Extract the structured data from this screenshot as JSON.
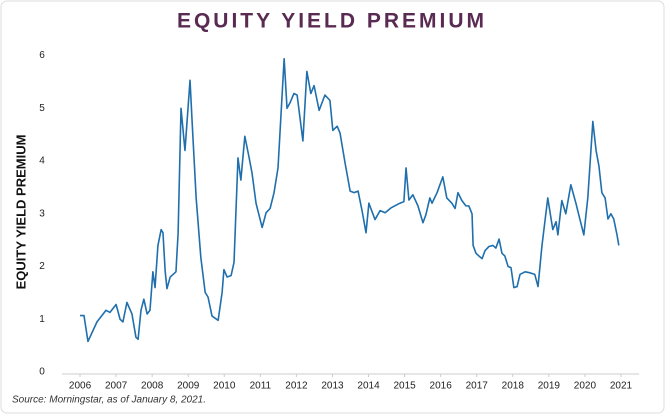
{
  "chart_data": {
    "type": "line",
    "title": "EQUITY YIELD PREMIUM",
    "y_label": "EQUITY YIELD PREMIUM",
    "source": "Source: Morningstar, as of January 8, 2021.",
    "xlim": [
      2005.5,
      2021.5
    ],
    "xticks": [
      2006,
      2007,
      2008,
      2009,
      2010,
      2011,
      2012,
      2013,
      2014,
      2015,
      2016,
      2017,
      2018,
      2019,
      2020,
      2021
    ],
    "ylim": [
      0,
      6.2
    ],
    "yticks": [
      0,
      1,
      2,
      3,
      4,
      5,
      6
    ],
    "grid": false,
    "series": [
      {
        "name": "Equity Yield Premium",
        "color": "#1f6fad",
        "x": [
          2006.0,
          2006.11,
          2006.22,
          2006.47,
          2006.72,
          2006.83,
          2007.0,
          2007.11,
          2007.19,
          2007.3,
          2007.44,
          2007.55,
          2007.61,
          2007.69,
          2007.77,
          2007.86,
          2007.94,
          2008.02,
          2008.08,
          2008.16,
          2008.25,
          2008.3,
          2008.36,
          2008.41,
          2008.5,
          2008.66,
          2008.72,
          2008.8,
          2008.91,
          2009.05,
          2009.11,
          2009.22,
          2009.35,
          2009.47,
          2009.55,
          2009.66,
          2009.83,
          2009.94,
          2009.99,
          2010.08,
          2010.19,
          2010.27,
          2010.38,
          2010.46,
          2010.57,
          2010.69,
          2010.77,
          2010.88,
          2011.05,
          2011.16,
          2011.27,
          2011.38,
          2011.49,
          2011.66,
          2011.74,
          2011.82,
          2011.93,
          2012.02,
          2012.18,
          2012.29,
          2012.4,
          2012.49,
          2012.63,
          2012.79,
          2012.93,
          2013.01,
          2013.13,
          2013.21,
          2013.35,
          2013.49,
          2013.6,
          2013.71,
          2013.82,
          2013.93,
          2014.01,
          2014.18,
          2014.32,
          2014.46,
          2014.62,
          2014.87,
          2014.98,
          2015.04,
          2015.12,
          2015.23,
          2015.37,
          2015.51,
          2015.59,
          2015.7,
          2015.76,
          2015.9,
          2016.06,
          2016.17,
          2016.31,
          2016.4,
          2016.48,
          2016.59,
          2016.7,
          2016.78,
          2016.87,
          2016.9,
          2016.98,
          2017.06,
          2017.15,
          2017.23,
          2017.34,
          2017.45,
          2017.53,
          2017.62,
          2017.7,
          2017.78,
          2017.87,
          2017.95,
          2018.03,
          2018.12,
          2018.2,
          2018.34,
          2018.48,
          2018.61,
          2018.7,
          2018.81,
          2018.97,
          2019.11,
          2019.2,
          2019.25,
          2019.36,
          2019.47,
          2019.61,
          2019.75,
          2019.86,
          2019.97,
          2020.08,
          2020.22,
          2020.31,
          2020.39,
          2020.47,
          2020.56,
          2020.64,
          2020.72,
          2020.8,
          2020.89,
          2020.94
        ],
        "values": [
          1.07,
          1.07,
          0.58,
          0.95,
          1.17,
          1.13,
          1.28,
          1.0,
          0.95,
          1.32,
          1.1,
          0.66,
          0.62,
          1.17,
          1.38,
          1.1,
          1.17,
          1.9,
          1.6,
          2.4,
          2.7,
          2.64,
          1.92,
          1.58,
          1.8,
          1.9,
          2.64,
          5.0,
          4.2,
          5.53,
          4.72,
          3.3,
          2.17,
          1.51,
          1.42,
          1.06,
          0.98,
          1.51,
          1.94,
          1.8,
          1.83,
          2.08,
          4.06,
          3.64,
          4.47,
          4.06,
          3.77,
          3.2,
          2.74,
          3.02,
          3.1,
          3.4,
          3.87,
          5.94,
          5.0,
          5.1,
          5.28,
          5.25,
          4.38,
          5.7,
          5.28,
          5.43,
          4.96,
          5.25,
          5.15,
          4.58,
          4.66,
          4.53,
          3.96,
          3.43,
          3.4,
          3.43,
          3.06,
          2.64,
          3.2,
          2.89,
          3.06,
          3.02,
          3.11,
          3.2,
          3.23,
          3.87,
          3.26,
          3.36,
          3.15,
          2.83,
          2.98,
          3.3,
          3.2,
          3.4,
          3.7,
          3.3,
          3.2,
          3.1,
          3.4,
          3.25,
          3.15,
          3.15,
          3.0,
          2.4,
          2.25,
          2.2,
          2.15,
          2.3,
          2.38,
          2.4,
          2.35,
          2.52,
          2.25,
          2.2,
          2.0,
          1.98,
          1.6,
          1.62,
          1.85,
          1.9,
          1.88,
          1.85,
          1.62,
          2.4,
          3.3,
          2.7,
          2.85,
          2.6,
          3.25,
          3.0,
          3.55,
          3.2,
          2.9,
          2.6,
          3.3,
          4.75,
          4.2,
          3.9,
          3.4,
          3.3,
          2.9,
          3.0,
          2.9,
          2.6,
          2.4
        ]
      }
    ]
  }
}
